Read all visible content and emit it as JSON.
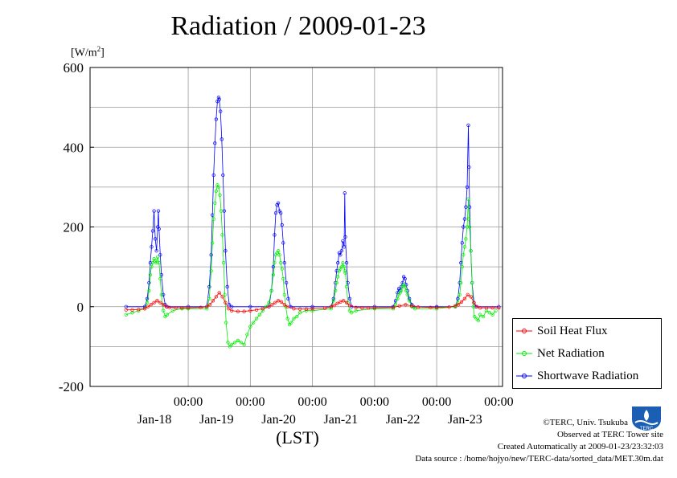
{
  "title": "Radiation / 2009-01-23",
  "unit_label": "[W/m",
  "unit_sup": "2",
  "unit_close": "]",
  "x_axis_label": "(LST)",
  "legend": {
    "items": [
      {
        "label": "Soil Heat Flux",
        "color": "#ff0000"
      },
      {
        "label": "Net Radiation",
        "color": "#00ee00"
      },
      {
        "label": "Shortwave Radiation",
        "color": "#0000ff"
      }
    ]
  },
  "credits": {
    "copyright": "©TERC, Univ. Tsukuba",
    "observed": "Observed at TERC Tower site",
    "created": "Created Automatically at 2009-01-23/23:32:03",
    "source": "Data source : /home/hojyo/new/TERC-data/sorted_data/MET.30m.dat"
  },
  "logo_text": "TERC",
  "chart_data": {
    "type": "line",
    "title": "Radiation / 2009-01-23",
    "ylabel": "[W/m2]",
    "xlabel": "(LST)",
    "ylim": [
      -200,
      600
    ],
    "y_ticks": [
      -200,
      0,
      200,
      400,
      600
    ],
    "x_range_days": [
      0,
      6
    ],
    "x_ticks": [
      {
        "day": 1,
        "time": "00:00",
        "date": "Jan-18"
      },
      {
        "day": 2,
        "time": "00:00",
        "date": "Jan-19"
      },
      {
        "day": 3,
        "time": "00:00",
        "date": "Jan-20"
      },
      {
        "day": 4,
        "time": "00:00",
        "date": "Jan-21"
      },
      {
        "day": 5,
        "time": "00:00",
        "date": "Jan-22"
      },
      {
        "day": 6,
        "time": "00:00",
        "date": "Jan-23"
      }
    ],
    "grid": true,
    "legend_position": "right-bottom",
    "series": [
      {
        "name": "Shortwave Radiation",
        "color": "#0000ff",
        "points": [
          [
            0.0,
            0
          ],
          [
            0.3,
            0
          ],
          [
            0.34,
            20
          ],
          [
            0.37,
            60
          ],
          [
            0.39,
            110
          ],
          [
            0.41,
            150
          ],
          [
            0.43,
            190
          ],
          [
            0.45,
            240
          ],
          [
            0.47,
            170
          ],
          [
            0.49,
            140
          ],
          [
            0.51,
            200
          ],
          [
            0.52,
            240
          ],
          [
            0.53,
            195
          ],
          [
            0.55,
            130
          ],
          [
            0.57,
            80
          ],
          [
            0.6,
            30
          ],
          [
            0.63,
            5
          ],
          [
            0.66,
            0
          ],
          [
            1.0,
            0
          ],
          [
            1.3,
            0
          ],
          [
            1.34,
            50
          ],
          [
            1.37,
            130
          ],
          [
            1.39,
            230
          ],
          [
            1.41,
            330
          ],
          [
            1.43,
            410
          ],
          [
            1.45,
            470
          ],
          [
            1.47,
            515
          ],
          [
            1.49,
            525
          ],
          [
            1.5,
            520
          ],
          [
            1.52,
            490
          ],
          [
            1.54,
            420
          ],
          [
            1.56,
            330
          ],
          [
            1.58,
            240
          ],
          [
            1.6,
            140
          ],
          [
            1.63,
            50
          ],
          [
            1.66,
            5
          ],
          [
            1.7,
            0
          ],
          [
            2.0,
            0
          ],
          [
            2.3,
            0
          ],
          [
            2.34,
            40
          ],
          [
            2.37,
            100
          ],
          [
            2.39,
            180
          ],
          [
            2.41,
            235
          ],
          [
            2.43,
            255
          ],
          [
            2.45,
            260
          ],
          [
            2.47,
            240
          ],
          [
            2.49,
            235
          ],
          [
            2.51,
            205
          ],
          [
            2.53,
            160
          ],
          [
            2.55,
            110
          ],
          [
            2.58,
            60
          ],
          [
            2.61,
            20
          ],
          [
            2.65,
            0
          ],
          [
            3.0,
            0
          ],
          [
            3.3,
            0
          ],
          [
            3.34,
            20
          ],
          [
            3.37,
            60
          ],
          [
            3.39,
            90
          ],
          [
            3.41,
            110
          ],
          [
            3.43,
            135
          ],
          [
            3.45,
            130
          ],
          [
            3.47,
            140
          ],
          [
            3.49,
            165
          ],
          [
            3.51,
            150
          ],
          [
            3.52,
            285
          ],
          [
            3.53,
            175
          ],
          [
            3.55,
            110
          ],
          [
            3.57,
            60
          ],
          [
            3.6,
            20
          ],
          [
            3.63,
            0
          ],
          [
            4.0,
            0
          ],
          [
            4.3,
            0
          ],
          [
            4.34,
            15
          ],
          [
            4.37,
            35
          ],
          [
            4.39,
            45
          ],
          [
            4.41,
            40
          ],
          [
            4.43,
            50
          ],
          [
            4.45,
            60
          ],
          [
            4.47,
            75
          ],
          [
            4.49,
            70
          ],
          [
            4.51,
            55
          ],
          [
            4.53,
            40
          ],
          [
            4.56,
            20
          ],
          [
            4.6,
            5
          ],
          [
            4.63,
            0
          ],
          [
            5.0,
            0
          ],
          [
            5.3,
            0
          ],
          [
            5.34,
            20
          ],
          [
            5.37,
            60
          ],
          [
            5.39,
            110
          ],
          [
            5.41,
            160
          ],
          [
            5.43,
            200
          ],
          [
            5.45,
            220
          ],
          [
            5.47,
            250
          ],
          [
            5.49,
            300
          ],
          [
            5.51,
            455
          ],
          [
            5.52,
            350
          ],
          [
            5.53,
            250
          ],
          [
            5.55,
            140
          ],
          [
            5.57,
            60
          ],
          [
            5.6,
            10
          ],
          [
            5.63,
            0
          ],
          [
            6.0,
            0
          ]
        ]
      },
      {
        "name": "Net Radiation",
        "color": "#00ee00",
        "points": [
          [
            0.0,
            -20
          ],
          [
            0.1,
            -15
          ],
          [
            0.2,
            -10
          ],
          [
            0.3,
            -5
          ],
          [
            0.34,
            10
          ],
          [
            0.37,
            40
          ],
          [
            0.39,
            80
          ],
          [
            0.41,
            100
          ],
          [
            0.43,
            110
          ],
          [
            0.45,
            120
          ],
          [
            0.47,
            115
          ],
          [
            0.49,
            110
          ],
          [
            0.51,
            125
          ],
          [
            0.53,
            110
          ],
          [
            0.55,
            70
          ],
          [
            0.57,
            30
          ],
          [
            0.6,
            -10
          ],
          [
            0.63,
            -25
          ],
          [
            0.66,
            -20
          ],
          [
            0.75,
            -10
          ],
          [
            0.9,
            -5
          ],
          [
            1.0,
            -5
          ],
          [
            1.3,
            -5
          ],
          [
            1.34,
            20
          ],
          [
            1.37,
            90
          ],
          [
            1.39,
            160
          ],
          [
            1.41,
            220
          ],
          [
            1.43,
            260
          ],
          [
            1.45,
            290
          ],
          [
            1.47,
            305
          ],
          [
            1.49,
            300
          ],
          [
            1.51,
            280
          ],
          [
            1.53,
            240
          ],
          [
            1.55,
            180
          ],
          [
            1.57,
            110
          ],
          [
            1.59,
            30
          ],
          [
            1.61,
            -40
          ],
          [
            1.64,
            -90
          ],
          [
            1.67,
            -100
          ],
          [
            1.7,
            -95
          ],
          [
            1.75,
            -90
          ],
          [
            1.8,
            -85
          ],
          [
            1.85,
            -90
          ],
          [
            1.9,
            -95
          ],
          [
            1.95,
            -70
          ],
          [
            2.0,
            -50
          ],
          [
            2.05,
            -40
          ],
          [
            2.1,
            -30
          ],
          [
            2.15,
            -20
          ],
          [
            2.2,
            -10
          ],
          [
            2.25,
            0
          ],
          [
            2.3,
            10
          ],
          [
            2.34,
            40
          ],
          [
            2.37,
            80
          ],
          [
            2.39,
            110
          ],
          [
            2.41,
            130
          ],
          [
            2.43,
            135
          ],
          [
            2.45,
            140
          ],
          [
            2.47,
            130
          ],
          [
            2.49,
            110
          ],
          [
            2.51,
            95
          ],
          [
            2.53,
            70
          ],
          [
            2.55,
            30
          ],
          [
            2.57,
            0
          ],
          [
            2.6,
            -30
          ],
          [
            2.63,
            -45
          ],
          [
            2.66,
            -40
          ],
          [
            2.7,
            -30
          ],
          [
            2.75,
            -25
          ],
          [
            2.8,
            -15
          ],
          [
            2.9,
            -10
          ],
          [
            3.0,
            -10
          ],
          [
            3.3,
            -5
          ],
          [
            3.34,
            15
          ],
          [
            3.37,
            40
          ],
          [
            3.39,
            60
          ],
          [
            3.41,
            75
          ],
          [
            3.43,
            90
          ],
          [
            3.45,
            95
          ],
          [
            3.47,
            100
          ],
          [
            3.49,
            110
          ],
          [
            3.51,
            100
          ],
          [
            3.52,
            90
          ],
          [
            3.53,
            85
          ],
          [
            3.55,
            50
          ],
          [
            3.57,
            10
          ],
          [
            3.6,
            -10
          ],
          [
            3.63,
            -15
          ],
          [
            3.7,
            -10
          ],
          [
            4.0,
            -5
          ],
          [
            4.3,
            -5
          ],
          [
            4.34,
            5
          ],
          [
            4.37,
            20
          ],
          [
            4.39,
            30
          ],
          [
            4.41,
            35
          ],
          [
            4.43,
            40
          ],
          [
            4.45,
            50
          ],
          [
            4.47,
            55
          ],
          [
            4.49,
            50
          ],
          [
            4.51,
            40
          ],
          [
            4.53,
            30
          ],
          [
            4.56,
            15
          ],
          [
            4.6,
            0
          ],
          [
            4.65,
            -5
          ],
          [
            5.0,
            -5
          ],
          [
            5.3,
            0
          ],
          [
            5.34,
            10
          ],
          [
            5.37,
            30
          ],
          [
            5.39,
            60
          ],
          [
            5.41,
            100
          ],
          [
            5.43,
            130
          ],
          [
            5.45,
            150
          ],
          [
            5.47,
            170
          ],
          [
            5.49,
            200
          ],
          [
            5.51,
            270
          ],
          [
            5.52,
            220
          ],
          [
            5.53,
            200
          ],
          [
            5.55,
            140
          ],
          [
            5.57,
            60
          ],
          [
            5.59,
            0
          ],
          [
            5.61,
            -25
          ],
          [
            5.64,
            -30
          ],
          [
            5.67,
            -35
          ],
          [
            5.7,
            -20
          ],
          [
            5.75,
            -25
          ],
          [
            5.8,
            -10
          ],
          [
            5.85,
            -15
          ],
          [
            5.9,
            -20
          ],
          [
            5.95,
            -10
          ]
        ]
      },
      {
        "name": "Soil Heat Flux",
        "color": "#ff0000",
        "points": [
          [
            0.0,
            -8
          ],
          [
            0.1,
            -8
          ],
          [
            0.2,
            -7
          ],
          [
            0.3,
            -5
          ],
          [
            0.35,
            0
          ],
          [
            0.4,
            5
          ],
          [
            0.45,
            10
          ],
          [
            0.5,
            15
          ],
          [
            0.55,
            10
          ],
          [
            0.6,
            5
          ],
          [
            0.65,
            0
          ],
          [
            0.7,
            -2
          ],
          [
            0.8,
            -3
          ],
          [
            0.9,
            -3
          ],
          [
            1.0,
            -3
          ],
          [
            1.2,
            -2
          ],
          [
            1.3,
            0
          ],
          [
            1.35,
            5
          ],
          [
            1.4,
            15
          ],
          [
            1.45,
            25
          ],
          [
            1.5,
            35
          ],
          [
            1.55,
            25
          ],
          [
            1.6,
            10
          ],
          [
            1.65,
            -5
          ],
          [
            1.7,
            -10
          ],
          [
            1.8,
            -12
          ],
          [
            1.9,
            -12
          ],
          [
            2.0,
            -10
          ],
          [
            2.1,
            -8
          ],
          [
            2.2,
            -5
          ],
          [
            2.3,
            0
          ],
          [
            2.35,
            5
          ],
          [
            2.4,
            10
          ],
          [
            2.45,
            15
          ],
          [
            2.5,
            12
          ],
          [
            2.55,
            5
          ],
          [
            2.6,
            0
          ],
          [
            2.7,
            -5
          ],
          [
            2.8,
            -6
          ],
          [
            2.9,
            -6
          ],
          [
            3.0,
            -5
          ],
          [
            3.2,
            -4
          ],
          [
            3.3,
            0
          ],
          [
            3.35,
            3
          ],
          [
            3.4,
            8
          ],
          [
            3.45,
            12
          ],
          [
            3.5,
            15
          ],
          [
            3.55,
            10
          ],
          [
            3.6,
            3
          ],
          [
            3.7,
            -2
          ],
          [
            3.8,
            -3
          ],
          [
            3.9,
            -3
          ],
          [
            4.0,
            -3
          ],
          [
            4.3,
            -2
          ],
          [
            4.4,
            2
          ],
          [
            4.5,
            5
          ],
          [
            4.6,
            2
          ],
          [
            4.7,
            -1
          ],
          [
            4.9,
            -2
          ],
          [
            5.0,
            -2
          ],
          [
            5.2,
            -1
          ],
          [
            5.3,
            2
          ],
          [
            5.35,
            5
          ],
          [
            5.4,
            12
          ],
          [
            5.45,
            20
          ],
          [
            5.5,
            30
          ],
          [
            5.55,
            25
          ],
          [
            5.6,
            10
          ],
          [
            5.65,
            0
          ],
          [
            5.7,
            -3
          ],
          [
            5.8,
            -3
          ],
          [
            5.9,
            -3
          ],
          [
            6.0,
            -3
          ]
        ]
      }
    ]
  }
}
